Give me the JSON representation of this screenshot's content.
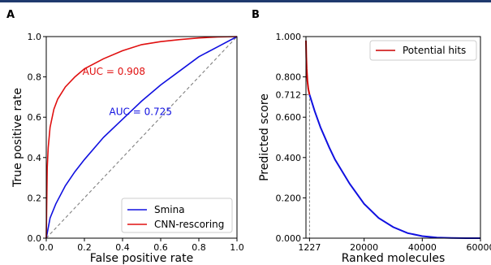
{
  "colors": {
    "header_rule": "#1f3a6e",
    "smina": "#1010e0",
    "cnn": "#e01010",
    "hits": "#cc0000",
    "diagonal": "#808080",
    "axes": "#000000"
  },
  "chart_data": [
    {
      "type": "line",
      "panel_label": "A",
      "title": "",
      "xlabel": "False positive rate",
      "ylabel": "True positive rate",
      "xlim": [
        0.0,
        1.0
      ],
      "ylim": [
        0.0,
        1.0
      ],
      "x_ticks": [
        "0.0",
        "0.2",
        "0.4",
        "0.6",
        "0.8",
        "1.0"
      ],
      "y_ticks": [
        "0.0",
        "0.2",
        "0.4",
        "0.6",
        "0.8",
        "1.0"
      ],
      "grid": false,
      "legend_position": "lower-right",
      "reference_line": "dashed diagonal",
      "series": [
        {
          "name": "Smina",
          "color": "#1010e0",
          "x": [
            0.0,
            0.02,
            0.05,
            0.1,
            0.15,
            0.2,
            0.3,
            0.4,
            0.5,
            0.6,
            0.7,
            0.8,
            0.9,
            1.0
          ],
          "y": [
            0.0,
            0.1,
            0.17,
            0.26,
            0.33,
            0.39,
            0.5,
            0.59,
            0.68,
            0.76,
            0.83,
            0.9,
            0.95,
            1.0
          ]
        },
        {
          "name": "CNN-rescoring",
          "color": "#e01010",
          "x": [
            0.0,
            0.005,
            0.01,
            0.02,
            0.04,
            0.06,
            0.1,
            0.15,
            0.2,
            0.3,
            0.4,
            0.5,
            0.6,
            0.7,
            0.8,
            0.9,
            1.0
          ],
          "y": [
            0.0,
            0.35,
            0.45,
            0.55,
            0.64,
            0.69,
            0.75,
            0.8,
            0.84,
            0.89,
            0.93,
            0.96,
            0.975,
            0.985,
            0.993,
            0.998,
            1.0
          ]
        }
      ],
      "annotations": [
        {
          "text": "AUC = 0.908",
          "color": "#e01010",
          "x": 0.19,
          "y": 0.81
        },
        {
          "text": "AUC = 0.725",
          "color": "#1010e0",
          "x": 0.33,
          "y": 0.61
        }
      ]
    },
    {
      "type": "line",
      "panel_label": "B",
      "title": "",
      "xlabel": "Ranked molecules",
      "ylabel": "Predicted score",
      "xlim": [
        0,
        60000
      ],
      "ylim": [
        0.0,
        1.0
      ],
      "x_ticks": [
        {
          "value": 1227,
          "label": "1227"
        },
        {
          "value": 20000,
          "label": "20000"
        },
        {
          "value": 40000,
          "label": "40000"
        },
        {
          "value": 60000,
          "label": "60000"
        }
      ],
      "y_ticks": [
        {
          "value": 0.0,
          "label": "0.000"
        },
        {
          "value": 0.2,
          "label": "0.200"
        },
        {
          "value": 0.4,
          "label": "0.400"
        },
        {
          "value": 0.6,
          "label": "0.600"
        },
        {
          "value": 0.712,
          "label": "0.712"
        },
        {
          "value": 0.8,
          "label": "0.800"
        },
        {
          "value": 1.0,
          "label": "1.000"
        }
      ],
      "grid": false,
      "legend_position": "top-right",
      "cutoff": {
        "x": 1227,
        "y": 0.712,
        "style": "dashed"
      },
      "series": [
        {
          "name": "Potential hits",
          "color": "#cc0000",
          "x": [
            0,
            100,
            250,
            500,
            800,
            1227
          ],
          "y": [
            0.98,
            0.9,
            0.84,
            0.78,
            0.74,
            0.712
          ]
        },
        {
          "name": "",
          "color": "#1010e0",
          "x": [
            1227,
            3000,
            5000,
            8000,
            10000,
            15000,
            20000,
            25000,
            30000,
            35000,
            40000,
            45000,
            50000,
            55000,
            60000
          ],
          "y": [
            0.712,
            0.63,
            0.55,
            0.45,
            0.39,
            0.27,
            0.17,
            0.1,
            0.055,
            0.025,
            0.01,
            0.003,
            0.001,
            0.0,
            0.0
          ]
        }
      ]
    }
  ]
}
